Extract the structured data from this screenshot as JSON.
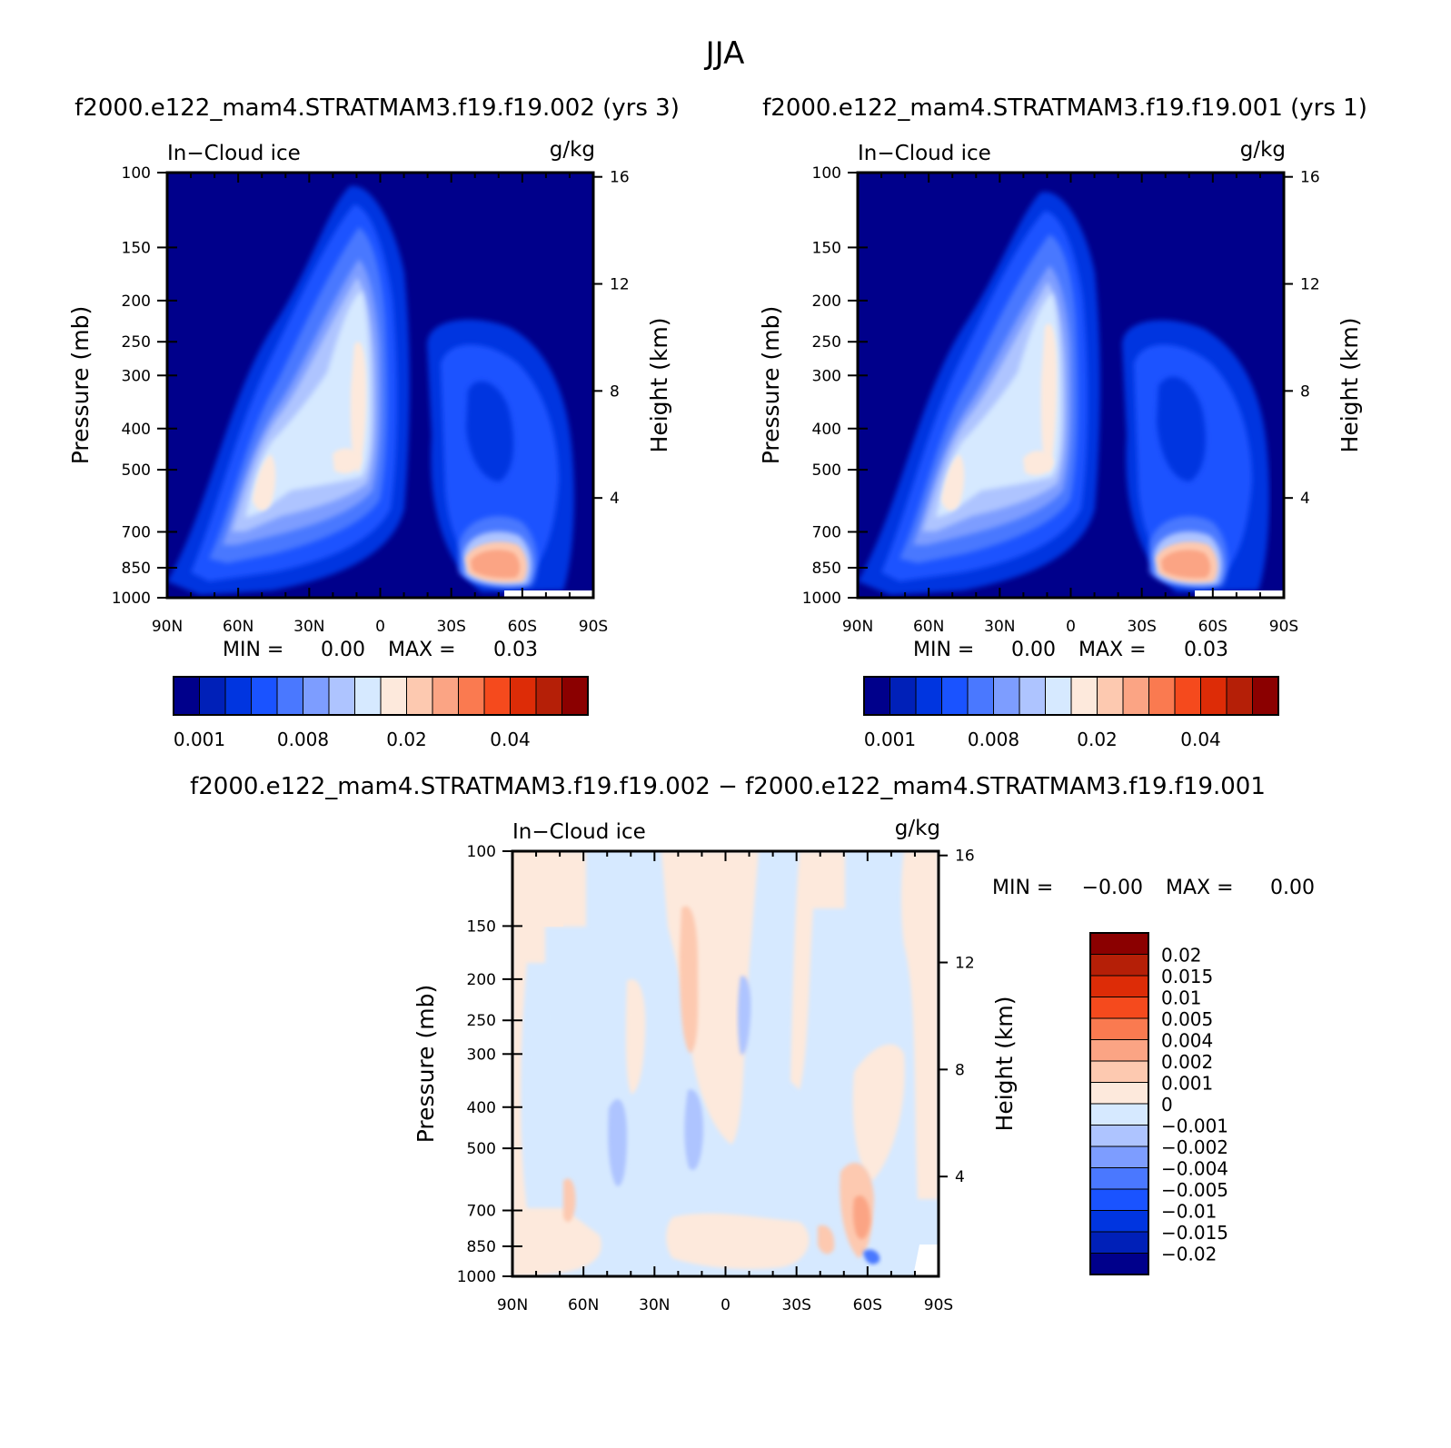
{
  "season": "JJA",
  "case_a": "f2000.e122_mam4.STRATMAM3.f19.f19.002 (yrs 3)",
  "case_b": "f2000.e122_mam4.STRATMAM3.f19.f19.001 (yrs 1)",
  "diff_title": "f2000.e122_mam4.STRATMAM3.f19.f19.002 − f2000.e122_mam4.STRATMAM3.f19.f19.001",
  "colors": {
    "levels_abs": [
      "#00008b",
      "#0020b8",
      "#0035e0",
      "#1a53ff",
      "#4a78ff",
      "#7d9dff",
      "#aec4ff",
      "#d6e9ff",
      "#fde9dc",
      "#fdc9b0",
      "#fba484",
      "#fa7a50",
      "#f54a1d",
      "#dd2c07",
      "#b51f07",
      "#8b0000"
    ],
    "levels_diff": [
      "#00008b",
      "#0020b8",
      "#0035e0",
      "#1a53ff",
      "#4a78ff",
      "#7d9dff",
      "#aec4ff",
      "#d6e9ff",
      "#fde9dc",
      "#fdc9b0",
      "#fba484",
      "#fa7a50",
      "#f54a1d",
      "#dd2c07",
      "#b51f07",
      "#8b0000"
    ]
  },
  "chart_data": [
    {
      "type": "contour",
      "panel": "case_a",
      "variable": "In−Cloud ice",
      "units": "g/kg",
      "xlabel": "",
      "ylabel": "Pressure (mb)",
      "ylabel_right": "Height (km)",
      "x_ticks": [
        "90N",
        "60N",
        "30N",
        "0",
        "30S",
        "60S",
        "90S"
      ],
      "y_ticks": [
        "100",
        "150",
        "200",
        "250",
        "300",
        "400",
        "500",
        "700",
        "850",
        "1000"
      ],
      "y_right_ticks": [
        "16",
        "12",
        "8",
        "4"
      ],
      "min_label": "MIN =",
      "min_value": "0.00",
      "max_label": "MAX =",
      "max_value": "0.03",
      "colorbar_labels": [
        "0.001",
        "0.008",
        "0.02",
        "0.04"
      ]
    },
    {
      "type": "contour",
      "panel": "case_b",
      "variable": "In−Cloud ice",
      "units": "g/kg",
      "xlabel": "",
      "ylabel": "Pressure (mb)",
      "ylabel_right": "Height (km)",
      "x_ticks": [
        "90N",
        "60N",
        "30N",
        "0",
        "30S",
        "60S",
        "90S"
      ],
      "y_ticks": [
        "100",
        "150",
        "200",
        "250",
        "300",
        "400",
        "500",
        "700",
        "850",
        "1000"
      ],
      "y_right_ticks": [
        "16",
        "12",
        "8",
        "4"
      ],
      "min_label": "MIN =",
      "min_value": "0.00",
      "max_label": "MAX =",
      "max_value": "0.03",
      "colorbar_labels": [
        "0.001",
        "0.008",
        "0.02",
        "0.04"
      ]
    },
    {
      "type": "contour",
      "panel": "difference",
      "variable": "In−Cloud ice",
      "units": "g/kg",
      "xlabel": "",
      "ylabel": "Pressure (mb)",
      "ylabel_right": "Height (km)",
      "x_ticks": [
        "90N",
        "60N",
        "30N",
        "0",
        "30S",
        "60S",
        "90S"
      ],
      "y_ticks": [
        "100",
        "150",
        "200",
        "250",
        "300",
        "400",
        "500",
        "700",
        "850",
        "1000"
      ],
      "y_right_ticks": [
        "16",
        "12",
        "8",
        "4"
      ],
      "min_label": "MIN =",
      "min_value": "−0.00",
      "max_label": "MAX =",
      "max_value": "0.00",
      "colorbar_labels": [
        "0.02",
        "0.015",
        "0.01",
        "0.005",
        "0.004",
        "0.002",
        "0.001",
        "0",
        "−0.001",
        "−0.002",
        "−0.004",
        "−0.005",
        "−0.01",
        "−0.015",
        "−0.02"
      ]
    }
  ]
}
